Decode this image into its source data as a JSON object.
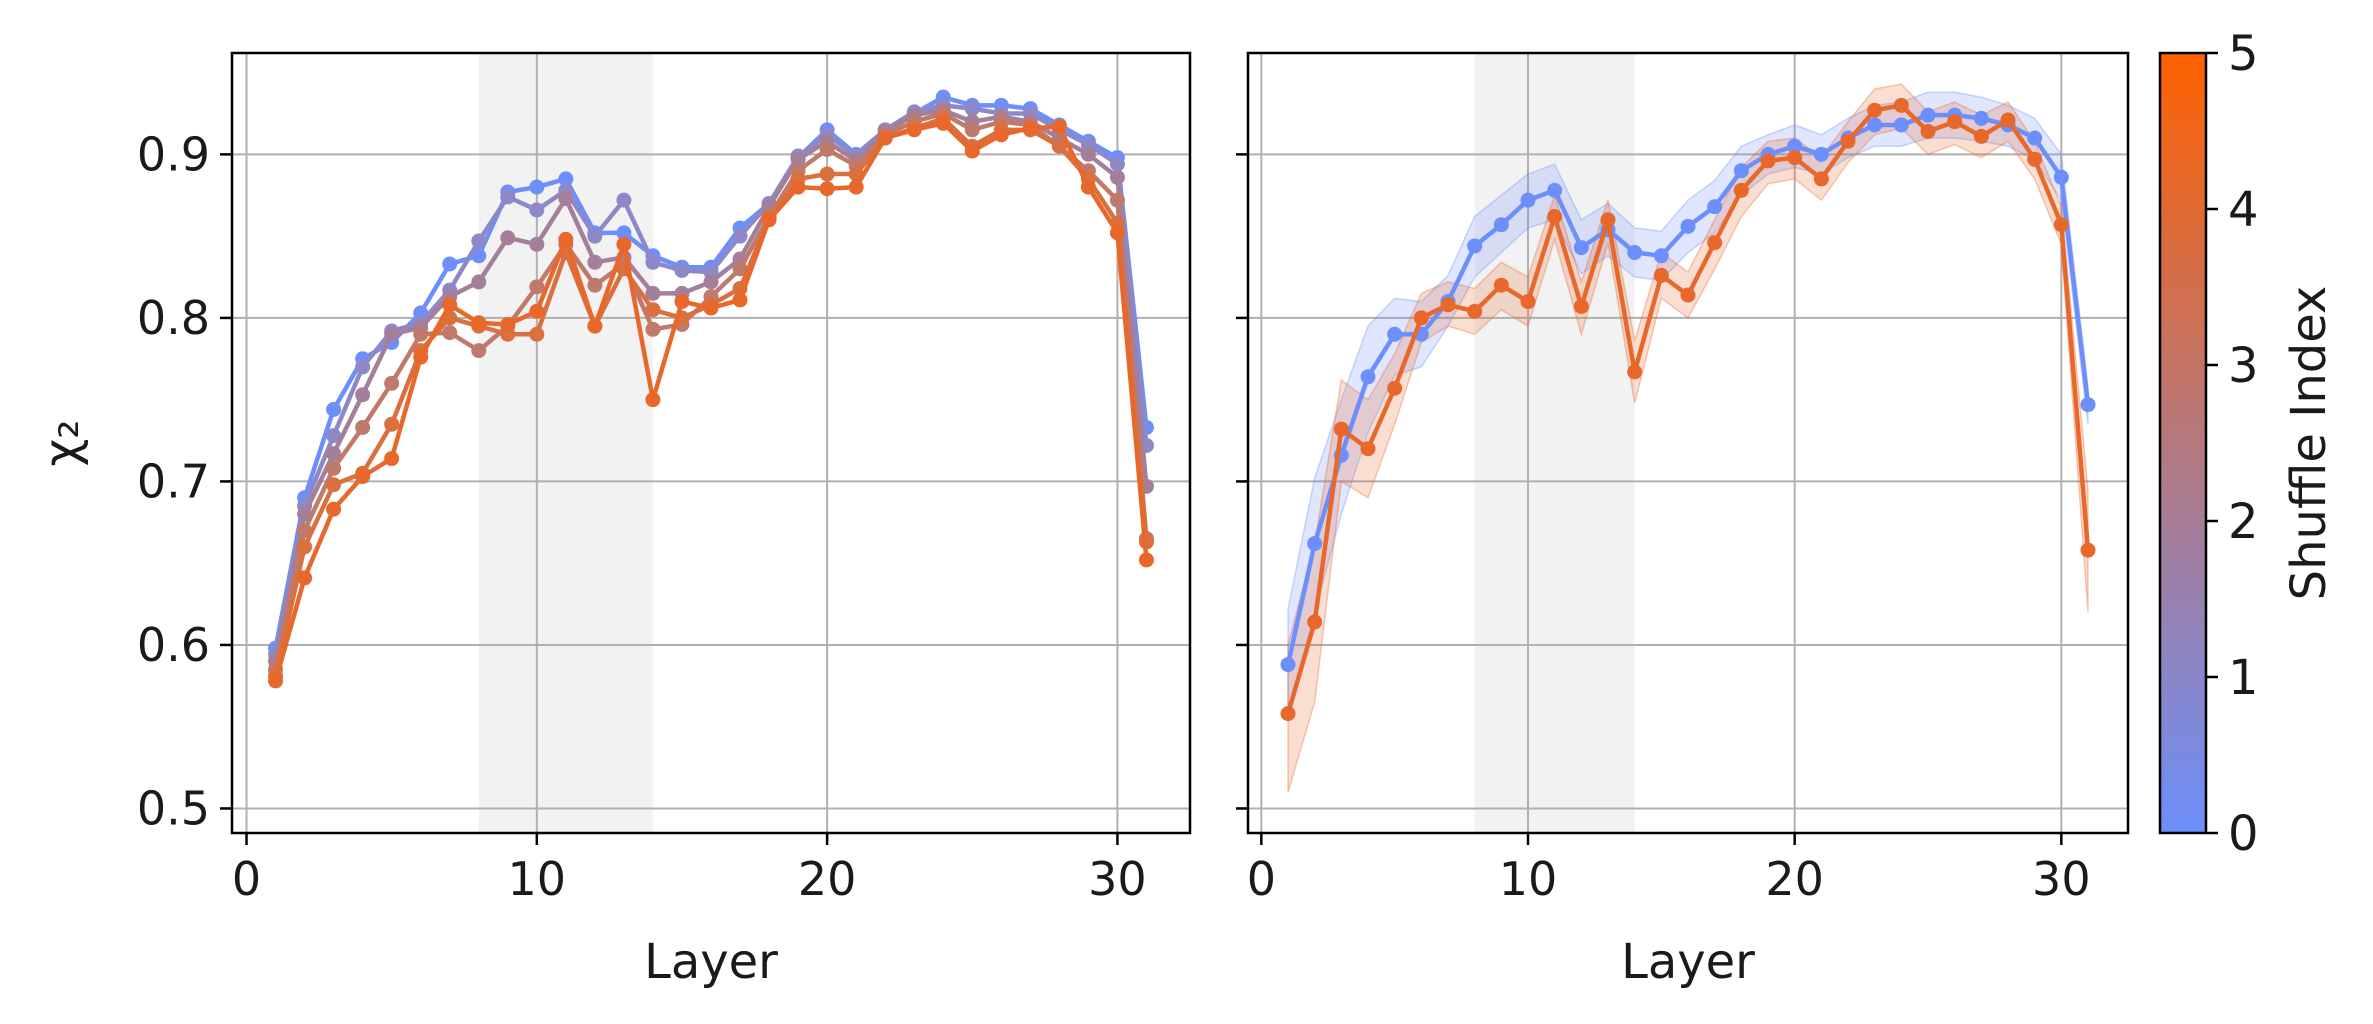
{
  "chart_data": [
    {
      "type": "line",
      "panel": "left",
      "xlabel": "Layer",
      "ylabel": "χ₂",
      "xlim": [
        -0.5,
        32.5
      ],
      "ylim": [
        0.485,
        0.962
      ],
      "xticks": [
        0,
        10,
        20,
        30
      ],
      "xtick_labels": [
        "0",
        "10",
        "20",
        "30"
      ],
      "yticks": [
        0.5,
        0.6,
        0.7,
        0.8,
        0.9
      ],
      "ytick_labels": [
        "0.5",
        "0.6",
        "0.7",
        "0.8",
        "0.9"
      ],
      "grid": true,
      "shaded_region": [
        8,
        14
      ],
      "x": [
        1,
        2,
        3,
        4,
        5,
        6,
        7,
        8,
        9,
        10,
        11,
        12,
        13,
        14,
        15,
        16,
        17,
        18,
        19,
        20,
        21,
        22,
        23,
        24,
        25,
        26,
        27,
        28,
        29,
        30,
        31
      ],
      "series": [
        {
          "shuffle_index": 0,
          "color": "#6c8ffb",
          "values": [
            0.598,
            0.69,
            0.744,
            0.775,
            0.785,
            0.803,
            0.833,
            0.838,
            0.877,
            0.88,
            0.885,
            0.852,
            0.852,
            0.838,
            0.831,
            0.831,
            0.855,
            0.87,
            0.898,
            0.915,
            0.9,
            0.915,
            0.925,
            0.935,
            0.93,
            0.93,
            0.928,
            0.918,
            0.908,
            0.898,
            0.733
          ]
        },
        {
          "shuffle_index": 1,
          "color": "#8d89c8",
          "values": [
            0.594,
            0.685,
            0.728,
            0.77,
            0.792,
            0.797,
            0.817,
            0.847,
            0.874,
            0.866,
            0.878,
            0.85,
            0.872,
            0.834,
            0.829,
            0.828,
            0.85,
            0.87,
            0.899,
            0.912,
            0.899,
            0.915,
            0.926,
            0.93,
            0.928,
            0.925,
            0.925,
            0.915,
            0.906,
            0.894,
            0.722
          ]
        },
        {
          "shuffle_index": 2,
          "color": "#a47f9a",
          "values": [
            0.59,
            0.68,
            0.717,
            0.753,
            0.79,
            0.794,
            0.813,
            0.822,
            0.849,
            0.845,
            0.873,
            0.834,
            0.837,
            0.815,
            0.815,
            0.822,
            0.836,
            0.868,
            0.897,
            0.908,
            0.896,
            0.914,
            0.924,
            0.927,
            0.92,
            0.923,
            0.92,
            0.91,
            0.9,
            0.886,
            0.697
          ]
        },
        {
          "shuffle_index": 3,
          "color": "#bf7a6b",
          "values": [
            0.585,
            0.67,
            0.708,
            0.733,
            0.76,
            0.79,
            0.791,
            0.78,
            0.795,
            0.819,
            0.845,
            0.82,
            0.833,
            0.793,
            0.796,
            0.813,
            0.83,
            0.862,
            0.89,
            0.903,
            0.893,
            0.912,
            0.92,
            0.925,
            0.915,
            0.92,
            0.918,
            0.905,
            0.89,
            0.872,
            0.665
          ]
        },
        {
          "shuffle_index": 4,
          "color": "#d9703d",
          "values": [
            0.581,
            0.66,
            0.698,
            0.705,
            0.735,
            0.78,
            0.8,
            0.795,
            0.79,
            0.79,
            0.84,
            0.795,
            0.83,
            0.805,
            0.8,
            0.808,
            0.818,
            0.861,
            0.885,
            0.888,
            0.888,
            0.91,
            0.916,
            0.922,
            0.905,
            0.915,
            0.915,
            0.905,
            0.885,
            0.858,
            0.663
          ]
        },
        {
          "shuffle_index": 5,
          "color": "#e8682c",
          "values": [
            0.578,
            0.641,
            0.683,
            0.703,
            0.714,
            0.776,
            0.808,
            0.797,
            0.796,
            0.804,
            0.848,
            0.795,
            0.845,
            0.75,
            0.81,
            0.806,
            0.811,
            0.86,
            0.88,
            0.879,
            0.88,
            0.91,
            0.915,
            0.919,
            0.902,
            0.912,
            0.916,
            0.917,
            0.88,
            0.852,
            0.652
          ]
        }
      ]
    },
    {
      "type": "line",
      "panel": "right",
      "xlabel": "Layer",
      "ylabel": "",
      "xlim": [
        -0.5,
        32.5
      ],
      "ylim": [
        0.485,
        0.962
      ],
      "xticks": [
        0,
        10,
        20,
        30
      ],
      "xtick_labels": [
        "0",
        "10",
        "20",
        "30"
      ],
      "grid": true,
      "shaded_region": [
        8,
        14
      ],
      "x": [
        1,
        2,
        3,
        4,
        5,
        6,
        7,
        8,
        9,
        10,
        11,
        12,
        13,
        14,
        15,
        16,
        17,
        18,
        19,
        20,
        21,
        22,
        23,
        24,
        25,
        26,
        27,
        28,
        29,
        30,
        31
      ],
      "series": [
        {
          "shuffle_index": 0,
          "color": "#6c8ffb",
          "values": [
            0.588,
            0.662,
            0.716,
            0.764,
            0.79,
            0.79,
            0.81,
            0.844,
            0.857,
            0.872,
            0.878,
            0.843,
            0.854,
            0.84,
            0.838,
            0.856,
            0.868,
            0.89,
            0.9,
            0.905,
            0.9,
            0.91,
            0.918,
            0.918,
            0.924,
            0.924,
            0.922,
            0.918,
            0.91,
            0.886,
            0.747
          ],
          "lower": [
            0.555,
            0.62,
            0.68,
            0.73,
            0.765,
            0.77,
            0.795,
            0.825,
            0.84,
            0.855,
            0.86,
            0.827,
            0.838,
            0.825,
            0.823,
            0.84,
            0.852,
            0.875,
            0.888,
            0.892,
            0.888,
            0.898,
            0.905,
            0.905,
            0.91,
            0.91,
            0.908,
            0.905,
            0.897,
            0.872,
            0.735
          ],
          "upper": [
            0.622,
            0.702,
            0.75,
            0.795,
            0.812,
            0.81,
            0.826,
            0.862,
            0.875,
            0.888,
            0.894,
            0.86,
            0.87,
            0.855,
            0.853,
            0.872,
            0.884,
            0.905,
            0.912,
            0.918,
            0.912,
            0.922,
            0.93,
            0.932,
            0.938,
            0.938,
            0.935,
            0.93,
            0.922,
            0.9,
            0.758
          ]
        },
        {
          "shuffle_index": 5,
          "color": "#e8682c",
          "values": [
            0.558,
            0.614,
            0.732,
            0.72,
            0.757,
            0.8,
            0.808,
            0.804,
            0.82,
            0.81,
            0.862,
            0.807,
            0.86,
            0.767,
            0.826,
            0.814,
            0.846,
            0.878,
            0.896,
            0.898,
            0.885,
            0.908,
            0.927,
            0.93,
            0.914,
            0.92,
            0.911,
            0.921,
            0.897,
            0.857,
            0.658
          ],
          "lower": [
            0.51,
            0.565,
            0.7,
            0.69,
            0.735,
            0.785,
            0.795,
            0.79,
            0.805,
            0.795,
            0.848,
            0.79,
            0.846,
            0.748,
            0.812,
            0.8,
            0.83,
            0.862,
            0.882,
            0.885,
            0.872,
            0.895,
            0.912,
            0.916,
            0.9,
            0.906,
            0.898,
            0.908,
            0.885,
            0.845,
            0.62
          ],
          "upper": [
            0.6,
            0.662,
            0.762,
            0.75,
            0.778,
            0.815,
            0.822,
            0.818,
            0.834,
            0.825,
            0.875,
            0.822,
            0.872,
            0.786,
            0.84,
            0.828,
            0.86,
            0.892,
            0.908,
            0.91,
            0.898,
            0.92,
            0.94,
            0.943,
            0.926,
            0.932,
            0.924,
            0.932,
            0.908,
            0.868,
            0.695
          ]
        }
      ]
    }
  ],
  "colorbar": {
    "label": "Shuffle Index",
    "min": 0,
    "max": 5,
    "ticks": [
      "0",
      "1",
      "2",
      "3",
      "4",
      "5"
    ],
    "color_low": "#6c8ffb",
    "color_high": "#fe6100"
  }
}
